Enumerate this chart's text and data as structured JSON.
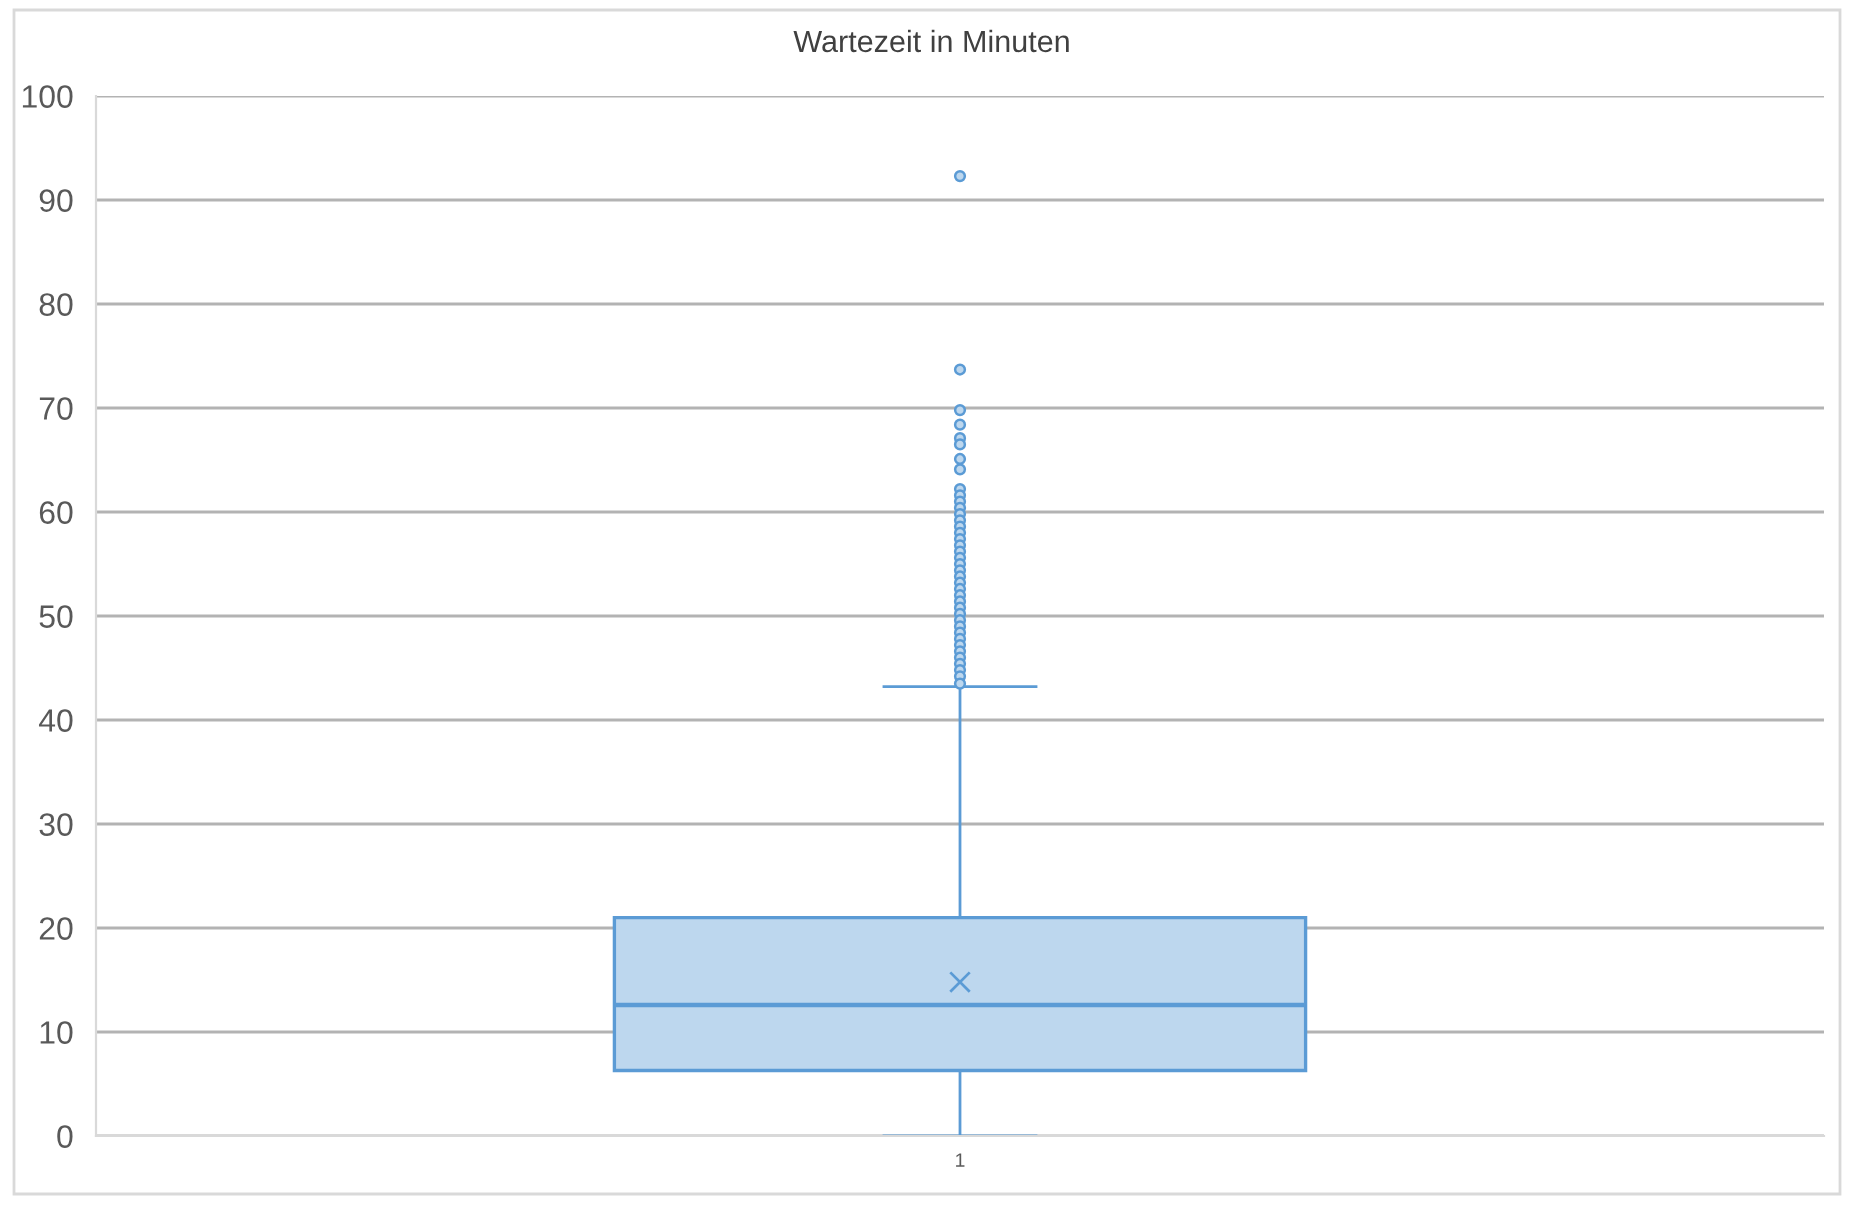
{
  "chart_data": {
    "type": "box",
    "title": "Wartezeit in Minuten",
    "categories": [
      "1"
    ],
    "series": [
      {
        "color": "#5b9bd5",
        "boxes": [
          {
            "low": 0,
            "q1": 6.3,
            "median": 12.6,
            "q3": 21.0,
            "high": 43.2,
            "mean": 14.8,
            "outliers": [
              92.3,
              73.7,
              69.8,
              68.4,
              67.1,
              66.5,
              65.1,
              64.1,
              62.2,
              61.6,
              61.0,
              60.4,
              59.8,
              59.2,
              58.6,
              58.0,
              57.4,
              56.8,
              56.2,
              55.6,
              55.0,
              54.4,
              53.8,
              53.2,
              52.6,
              52.0,
              51.4,
              50.8,
              50.2,
              49.6,
              49.0,
              48.4,
              47.8,
              47.2,
              46.6,
              46.0,
              45.4,
              44.8,
              44.2,
              43.5
            ]
          }
        ]
      }
    ],
    "ylim": [
      0,
      100
    ],
    "yticks": [
      0,
      10,
      20,
      30,
      40,
      50,
      60,
      70,
      80,
      90,
      100
    ],
    "grid": "y",
    "marker": "circle"
  }
}
